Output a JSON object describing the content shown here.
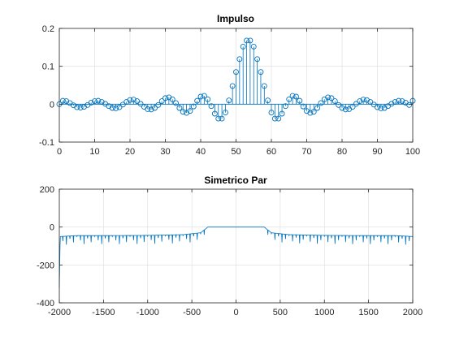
{
  "figure": {
    "background": "#ffffff"
  },
  "chart_data": [
    {
      "type": "stem",
      "title": "Impulso",
      "xlabel": "",
      "ylabel": "",
      "xlim": [
        0,
        100
      ],
      "ylim": [
        -0.1,
        0.2
      ],
      "xticks": [
        0,
        10,
        20,
        30,
        40,
        50,
        60,
        70,
        80,
        90,
        100
      ],
      "xtick_labels": [
        "0",
        "10",
        "20",
        "30",
        "40",
        "50",
        "60",
        "70",
        "80",
        "90",
        "100"
      ],
      "yticks": [
        -0.1,
        0,
        0.1,
        0.2
      ],
      "ytick_labels": [
        "-0.1",
        "0",
        "0.1",
        "0.2"
      ],
      "grid": true,
      "color": "#0072BD",
      "marker": "hollow-circle",
      "series": [
        {
          "x": [
            0,
            1,
            2,
            3,
            4,
            5,
            6,
            7,
            8,
            9,
            10,
            11,
            12,
            13,
            14,
            15,
            16,
            17,
            18,
            19,
            20,
            21,
            22,
            23,
            24,
            25,
            26,
            27,
            28,
            29,
            30,
            31,
            32,
            33,
            34,
            35,
            36,
            37,
            38,
            39,
            40,
            41,
            42,
            43,
            44,
            45,
            46,
            47,
            48,
            49,
            50,
            51,
            52,
            53,
            54,
            55,
            56,
            57,
            58,
            59,
            60,
            61,
            62,
            63,
            64,
            65,
            66,
            67,
            68,
            69,
            70,
            71,
            72,
            73,
            74,
            75,
            76,
            77,
            78,
            79,
            80,
            81,
            82,
            83,
            84,
            85,
            86,
            87,
            88,
            89,
            90,
            91,
            92,
            93,
            94,
            95,
            96,
            97,
            98,
            99,
            100
          ],
          "y": [
            0,
            0.009,
            0.008,
            0.003,
            -0.003,
            -0.008,
            -0.009,
            -0.007,
            -0.002,
            0.004,
            0.008,
            0.009,
            0.006,
            0.001,
            -0.005,
            -0.01,
            -0.011,
            -0.008,
            -0.001,
            0.006,
            0.011,
            0.012,
            0.008,
            0.001,
            -0.007,
            -0.013,
            -0.014,
            -0.01,
            -0.002,
            0.008,
            0.016,
            0.018,
            0.013,
            0.003,
            -0.01,
            -0.02,
            -0.023,
            -0.018,
            -0.006,
            0.009,
            0.02,
            0.022,
            0.013,
            -0.005,
            -0.025,
            -0.038,
            -0.038,
            -0.022,
            0.01,
            0.048,
            0.085,
            0.119,
            0.152,
            0.168,
            0.168,
            0.152,
            0.119,
            0.085,
            0.048,
            0.01,
            -0.022,
            -0.038,
            -0.038,
            -0.025,
            -0.005,
            0.013,
            0.022,
            0.02,
            0.009,
            -0.006,
            -0.018,
            -0.023,
            -0.02,
            -0.01,
            0.003,
            0.013,
            0.018,
            0.016,
            0.008,
            -0.002,
            -0.01,
            -0.014,
            -0.013,
            -0.007,
            0.001,
            0.008,
            0.012,
            0.011,
            0.006,
            -0.001,
            -0.008,
            -0.011,
            -0.01,
            -0.005,
            0.001,
            0.006,
            0.009,
            0.008,
            0.004,
            -0.002,
            0.009
          ]
        }
      ]
    },
    {
      "type": "line",
      "title": "Simetrico Par",
      "xlabel": "",
      "ylabel": "",
      "xlim": [
        -2000,
        2000
      ],
      "ylim": [
        -400,
        200
      ],
      "xticks": [
        -2000,
        -1500,
        -1000,
        -500,
        0,
        500,
        1000,
        1500,
        2000
      ],
      "xtick_labels": [
        "-2000",
        "-1500",
        "-1000",
        "-500",
        "0",
        "500",
        "1000",
        "1500",
        "2000"
      ],
      "yticks": [
        -400,
        -200,
        0,
        200
      ],
      "ytick_labels": [
        "-400",
        "-200",
        "0",
        "200"
      ],
      "grid": true,
      "color": "#0072BD",
      "series": [
        {
          "description_points": [
            [
              -2000,
              -320
            ],
            [
              -1990,
              -50
            ],
            [
              -1800,
              -45
            ],
            [
              -1400,
              -45
            ],
            [
              -1000,
              -44
            ],
            [
              -600,
              -40
            ],
            [
              -400,
              -30
            ],
            [
              -340,
              -8
            ],
            [
              -320,
              0
            ],
            [
              320,
              0
            ],
            [
              340,
              -8
            ],
            [
              400,
              -30
            ],
            [
              600,
              -40
            ],
            [
              1000,
              -44
            ],
            [
              1400,
              -45
            ],
            [
              1800,
              -45
            ],
            [
              2000,
              -50
            ]
          ],
          "notch_spacing": 40,
          "notch_depth_min": 5,
          "notch_depth_max": 55,
          "flat_top_x": [
            -320,
            320
          ],
          "flat_top_y": 0
        }
      ]
    }
  ]
}
